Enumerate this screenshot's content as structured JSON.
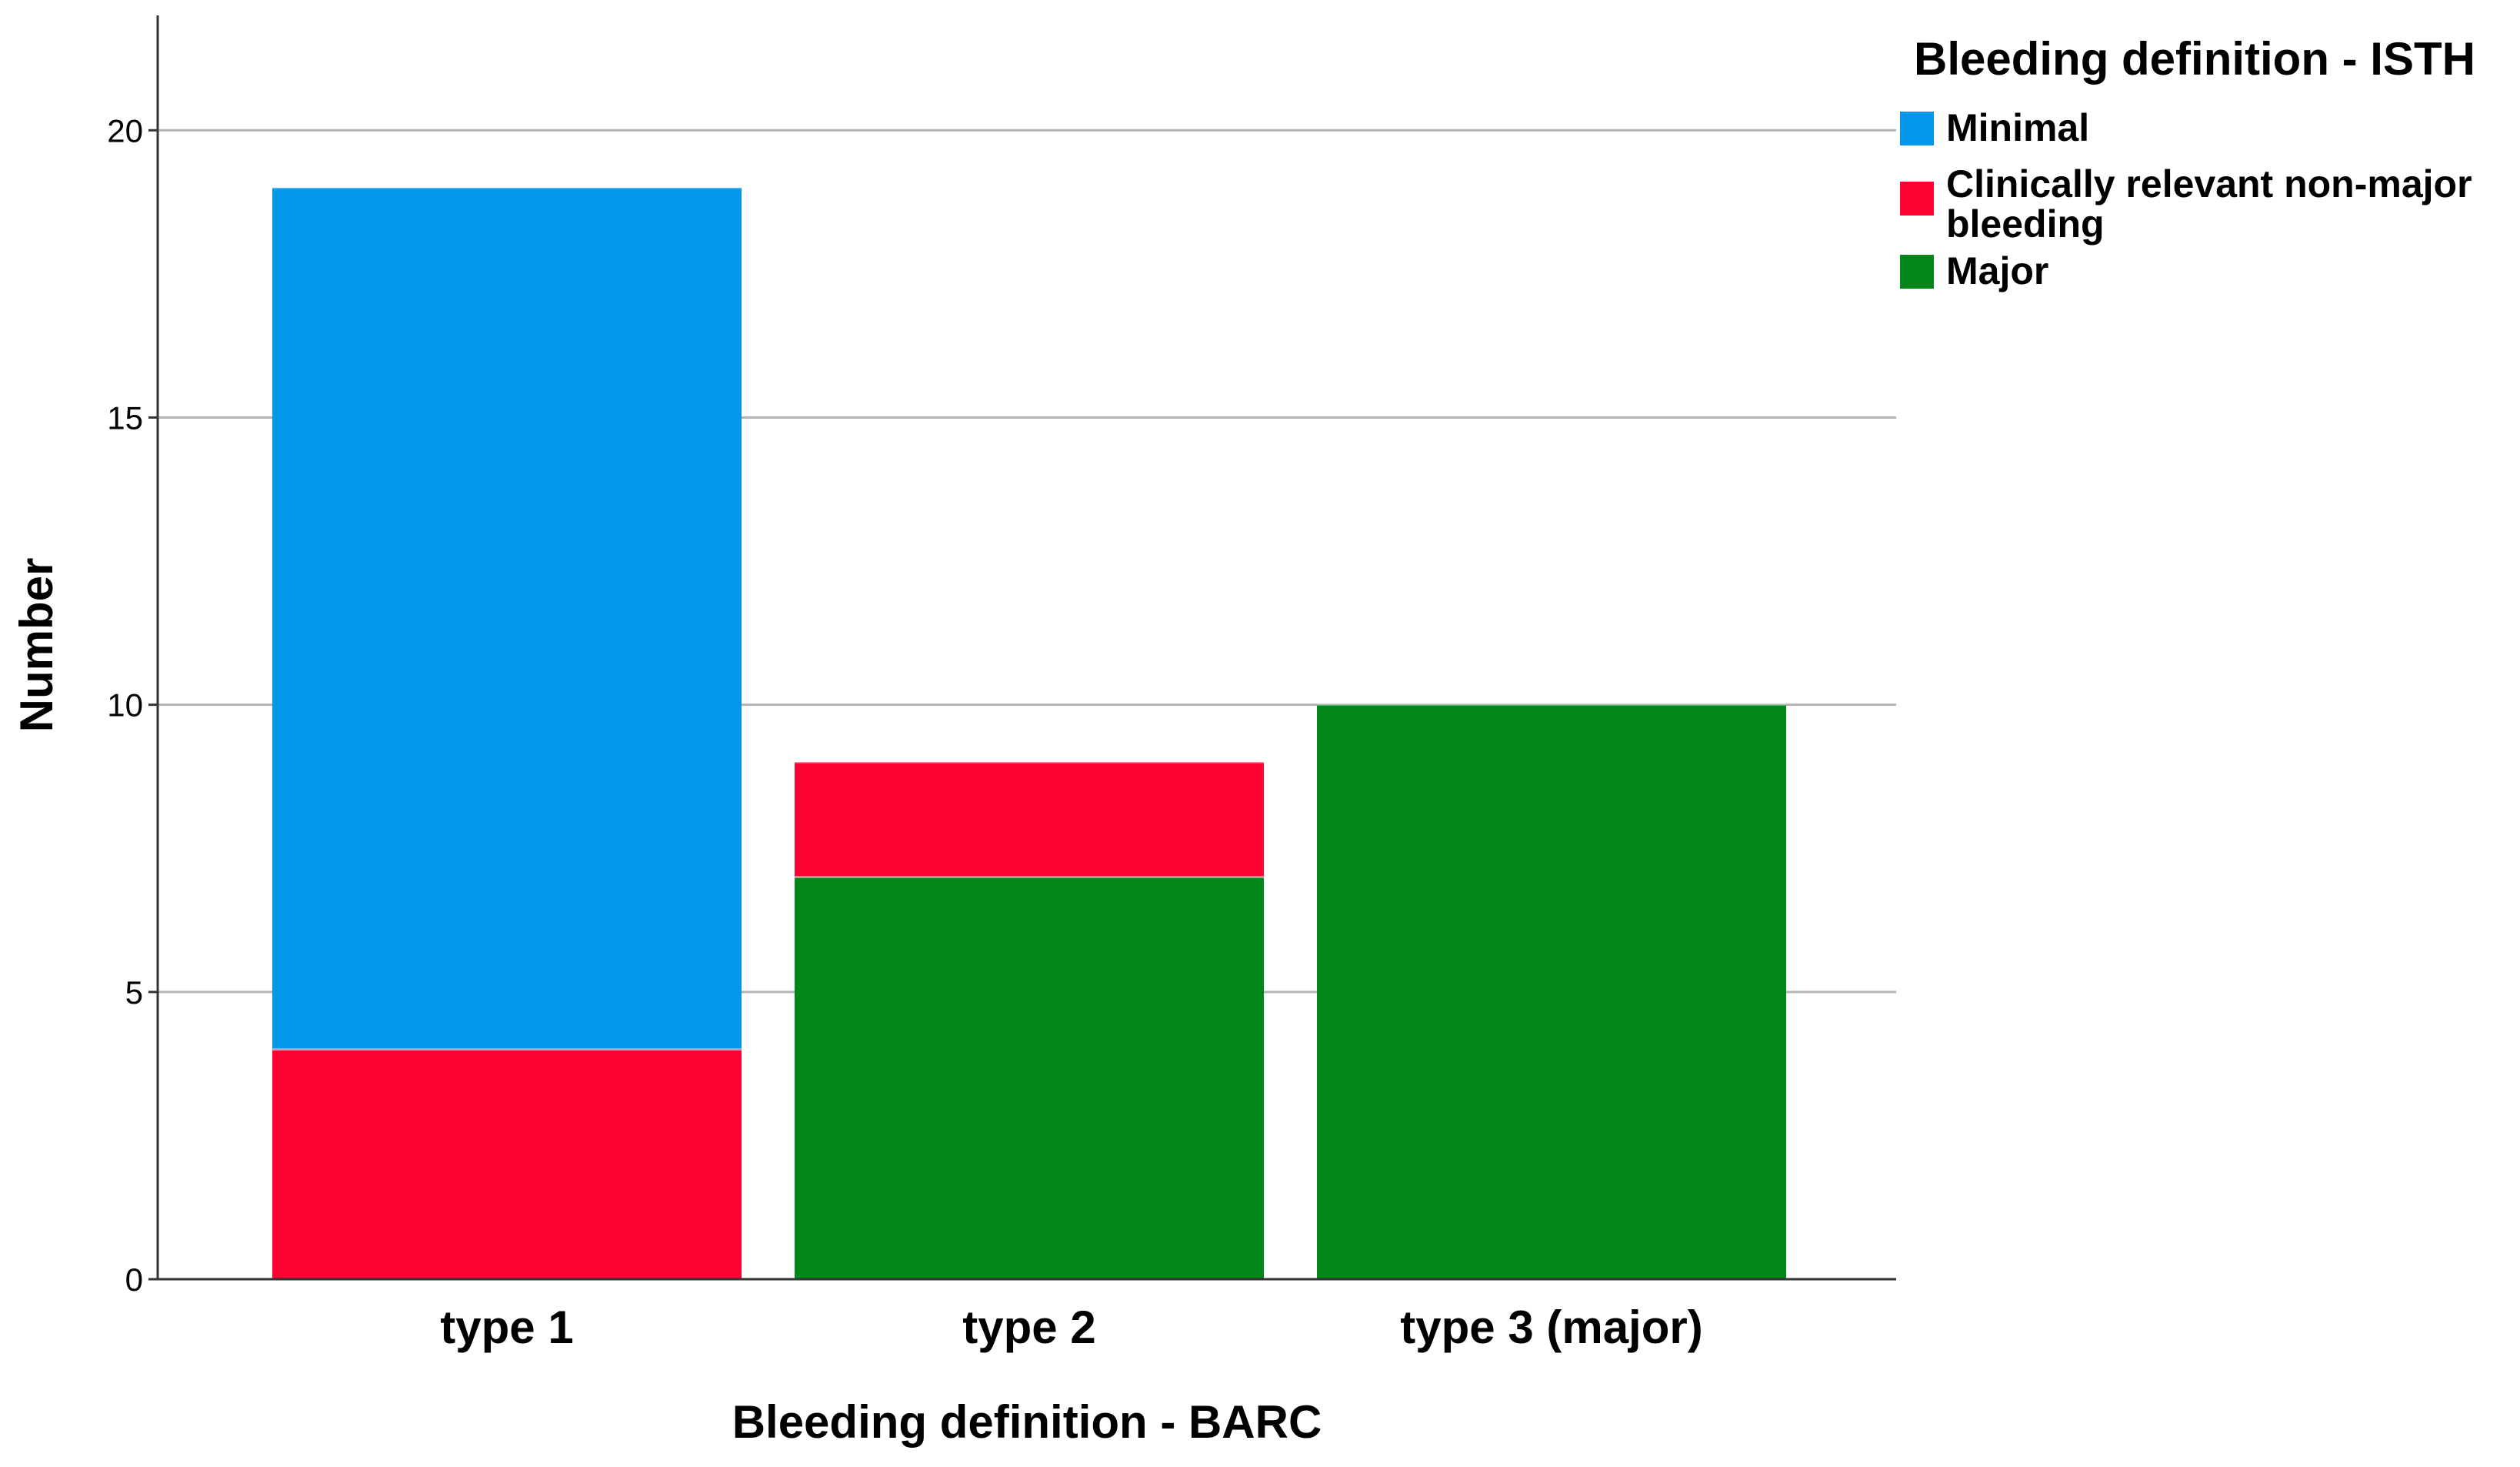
{
  "chart_data": {
    "type": "bar",
    "stacked": true,
    "categories": [
      "type 1",
      "type 2",
      "type 3 (major)"
    ],
    "series": [
      {
        "name": "Major",
        "color": "#02861a",
        "values": [
          0,
          7,
          10
        ]
      },
      {
        "name": "Clinically relevant non-major bleeding",
        "color": "#fb0232",
        "values": [
          4,
          2,
          0
        ]
      },
      {
        "name": "Minimal",
        "color": "#0496e8",
        "values": [
          15,
          0,
          0
        ]
      }
    ],
    "legend_order": [
      "Minimal",
      "Clinically relevant non-major bleeding",
      "Major"
    ],
    "xlabel": "Bleeding definition - BARC",
    "ylabel": "Number",
    "ylim": [
      0,
      22
    ],
    "yticks": [
      0,
      5,
      10,
      15,
      20
    ],
    "grid": true,
    "legend": {
      "title": "Bleeding definition - ISTH",
      "placement": "top-right"
    }
  }
}
